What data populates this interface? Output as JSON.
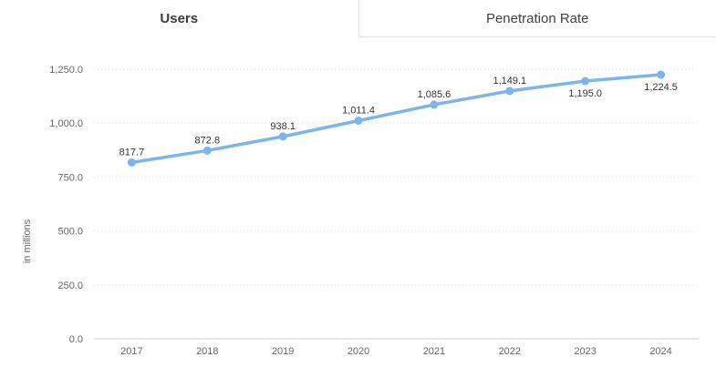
{
  "tabs": [
    {
      "label": "Users",
      "active": true
    },
    {
      "label": "Penetration Rate",
      "active": false
    }
  ],
  "chart_data": {
    "type": "line",
    "title": "",
    "categories": [
      "2017",
      "2018",
      "2019",
      "2020",
      "2021",
      "2022",
      "2023",
      "2024"
    ],
    "series": [
      {
        "name": "Users",
        "values": [
          817.7,
          872.8,
          938.1,
          1011.4,
          1085.6,
          1149.1,
          1195.0,
          1224.5
        ],
        "point_labels": [
          "817.7",
          "872.8",
          "938.1",
          "1,011.4",
          "1,085.6",
          "1,149.1",
          "1,195.0",
          "1,224.5"
        ],
        "label_placement": [
          "above",
          "above",
          "above",
          "above",
          "above",
          "above",
          "below",
          "below"
        ]
      }
    ],
    "xlabel": "",
    "ylabel": "in millions",
    "ylim": [
      0,
      1250
    ],
    "yticks": [
      {
        "value": 0,
        "label": "0.0"
      },
      {
        "value": 250,
        "label": "250.0"
      },
      {
        "value": 500,
        "label": "500.0"
      },
      {
        "value": 750,
        "label": "750.0"
      },
      {
        "value": 1000,
        "label": "1,000.0"
      },
      {
        "value": 1250,
        "label": "1,250.0"
      }
    ],
    "grid": "horizontal-dotted",
    "legend_position": "none"
  },
  "colors": {
    "line": "#7cb5ec",
    "marker": "#7cb5ec",
    "gridline": "#e0e0e0",
    "axis_line": "#cccccc",
    "tick_label": "#666666",
    "data_label": "#333333",
    "axis_title": "#666666",
    "tab_text": "#404040",
    "tab_border": "#e2e2e2"
  }
}
